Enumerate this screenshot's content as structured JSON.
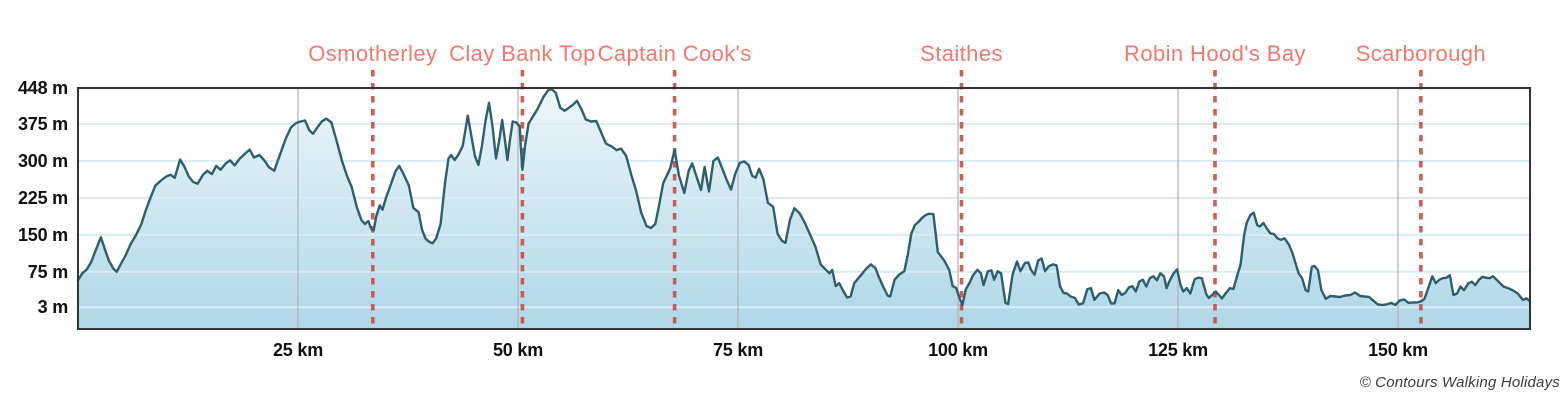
{
  "chart_data": {
    "type": "area",
    "title": "",
    "x_unit": "km",
    "y_unit": "m",
    "x_range": [
      0,
      165
    ],
    "y_axis_draw_range": [
      -41,
      448
    ],
    "grid": true,
    "y_ticks": [
      {
        "v": 448,
        "label": "448 m"
      },
      {
        "v": 375,
        "label": "375 m"
      },
      {
        "v": 300,
        "label": "300 m"
      },
      {
        "v": 225,
        "label": "225 m"
      },
      {
        "v": 150,
        "label": "150 m"
      },
      {
        "v": 75,
        "label": "75 m"
      },
      {
        "v": 3,
        "label": "3 m"
      }
    ],
    "x_ticks": [
      {
        "v": 25,
        "label": "25 km"
      },
      {
        "v": 50,
        "label": "50 km"
      },
      {
        "v": 75,
        "label": "75 km"
      },
      {
        "v": 100,
        "label": "100 km"
      },
      {
        "v": 125,
        "label": "125 km"
      },
      {
        "v": 150,
        "label": "150 km"
      }
    ],
    "markers": [
      {
        "label": "Osmotherley",
        "km": 33.5
      },
      {
        "label": "Clay Bank Top",
        "km": 50.5
      },
      {
        "label": "Captain Cook's",
        "km": 67.8
      },
      {
        "label": "Staithes",
        "km": 100.4
      },
      {
        "label": "Robin Hood's Bay",
        "km": 129.2
      },
      {
        "label": "Scarborough",
        "km": 152.6
      }
    ],
    "profile_km_m": [
      [
        0,
        58
      ],
      [
        0.5,
        72
      ],
      [
        1,
        80
      ],
      [
        1.5,
        95
      ],
      [
        2,
        118
      ],
      [
        2.6,
        145
      ],
      [
        3.1,
        118
      ],
      [
        3.5,
        98
      ],
      [
        4,
        82
      ],
      [
        4.4,
        75
      ],
      [
        4.9,
        92
      ],
      [
        5.4,
        108
      ],
      [
        6,
        132
      ],
      [
        6.6,
        150
      ],
      [
        7.2,
        172
      ],
      [
        7.7,
        200
      ],
      [
        8.3,
        228
      ],
      [
        8.8,
        250
      ],
      [
        9.4,
        260
      ],
      [
        10,
        268
      ],
      [
        10.5,
        272
      ],
      [
        11,
        266
      ],
      [
        11.6,
        303
      ],
      [
        12.1,
        288
      ],
      [
        12.6,
        268
      ],
      [
        13.1,
        257
      ],
      [
        13.6,
        254
      ],
      [
        14.2,
        272
      ],
      [
        14.7,
        280
      ],
      [
        15.2,
        273
      ],
      [
        15.7,
        290
      ],
      [
        16.2,
        282
      ],
      [
        16.8,
        295
      ],
      [
        17.3,
        301
      ],
      [
        17.8,
        291
      ],
      [
        18.4,
        305
      ],
      [
        19,
        315
      ],
      [
        19.5,
        323
      ],
      [
        20,
        307
      ],
      [
        20.6,
        312
      ],
      [
        21.1,
        303
      ],
      [
        21.7,
        287
      ],
      [
        22.3,
        280
      ],
      [
        23,
        315
      ],
      [
        23.6,
        345
      ],
      [
        24.2,
        368
      ],
      [
        24.8,
        377
      ],
      [
        25.3,
        380
      ],
      [
        25.8,
        382
      ],
      [
        26.3,
        362
      ],
      [
        26.7,
        355
      ],
      [
        27.2,
        368
      ],
      [
        27.7,
        380
      ],
      [
        28.2,
        386
      ],
      [
        28.8,
        378
      ],
      [
        29.4,
        340
      ],
      [
        30,
        300
      ],
      [
        30.6,
        268
      ],
      [
        31.1,
        247
      ],
      [
        31.7,
        205
      ],
      [
        32.2,
        180
      ],
      [
        32.6,
        172
      ],
      [
        33,
        178
      ],
      [
        33.3,
        163
      ],
      [
        33.6,
        160
      ],
      [
        33.9,
        188
      ],
      [
        34.3,
        210
      ],
      [
        34.6,
        201
      ],
      [
        35,
        225
      ],
      [
        35.6,
        255
      ],
      [
        36.1,
        280
      ],
      [
        36.5,
        290
      ],
      [
        37,
        273
      ],
      [
        37.6,
        250
      ],
      [
        38.1,
        205
      ],
      [
        38.7,
        196
      ],
      [
        39.1,
        160
      ],
      [
        39.5,
        142
      ],
      [
        40,
        135
      ],
      [
        40.3,
        133
      ],
      [
        40.7,
        143
      ],
      [
        41.2,
        172
      ],
      [
        41.7,
        255
      ],
      [
        42.1,
        305
      ],
      [
        42.4,
        312
      ],
      [
        42.8,
        302
      ],
      [
        43.2,
        312
      ],
      [
        43.7,
        330
      ],
      [
        44,
        360
      ],
      [
        44.3,
        392
      ],
      [
        44.7,
        350
      ],
      [
        45.1,
        310
      ],
      [
        45.5,
        292
      ],
      [
        45.9,
        330
      ],
      [
        46.3,
        380
      ],
      [
        46.7,
        418
      ],
      [
        47.1,
        370
      ],
      [
        47.5,
        305
      ],
      [
        47.9,
        345
      ],
      [
        48.2,
        383
      ],
      [
        48.6,
        330
      ],
      [
        48.8,
        302
      ],
      [
        49.1,
        345
      ],
      [
        49.4,
        380
      ],
      [
        49.8,
        378
      ],
      [
        50.2,
        370
      ],
      [
        50.3,
        335
      ],
      [
        50.5,
        282
      ],
      [
        50.8,
        330
      ],
      [
        51.2,
        376
      ],
      [
        51.8,
        393
      ],
      [
        52.3,
        408
      ],
      [
        52.9,
        430
      ],
      [
        53.4,
        443
      ],
      [
        53.8,
        446
      ],
      [
        54.3,
        438
      ],
      [
        54.8,
        408
      ],
      [
        55.3,
        402
      ],
      [
        55.8,
        408
      ],
      [
        56.3,
        415
      ],
      [
        56.7,
        422
      ],
      [
        57.2,
        405
      ],
      [
        57.7,
        384
      ],
      [
        58.3,
        380
      ],
      [
        58.9,
        381
      ],
      [
        59.4,
        360
      ],
      [
        60,
        335
      ],
      [
        60.6,
        330
      ],
      [
        61.2,
        322
      ],
      [
        61.7,
        325
      ],
      [
        62.3,
        310
      ],
      [
        62.9,
        270
      ],
      [
        63.4,
        241
      ],
      [
        64,
        195
      ],
      [
        64.6,
        168
      ],
      [
        65.1,
        164
      ],
      [
        65.6,
        172
      ],
      [
        66,
        207
      ],
      [
        66.5,
        255
      ],
      [
        66.9,
        270
      ],
      [
        67.3,
        285
      ],
      [
        67.8,
        322
      ],
      [
        68.3,
        270
      ],
      [
        68.9,
        235
      ],
      [
        69.4,
        280
      ],
      [
        69.8,
        295
      ],
      [
        70.3,
        268
      ],
      [
        70.8,
        241
      ],
      [
        71.2,
        288
      ],
      [
        71.7,
        238
      ],
      [
        72.2,
        300
      ],
      [
        72.7,
        307
      ],
      [
        73.2,
        285
      ],
      [
        73.7,
        262
      ],
      [
        74.2,
        242
      ],
      [
        74.7,
        275
      ],
      [
        75.2,
        296
      ],
      [
        75.7,
        299
      ],
      [
        76.2,
        292
      ],
      [
        76.6,
        270
      ],
      [
        77,
        266
      ],
      [
        77.4,
        284
      ],
      [
        77.9,
        262
      ],
      [
        78.4,
        215
      ],
      [
        79,
        207
      ],
      [
        79.5,
        152
      ],
      [
        80,
        138
      ],
      [
        80.4,
        134
      ],
      [
        80.9,
        180
      ],
      [
        81.4,
        204
      ],
      [
        82,
        194
      ],
      [
        82.6,
        174
      ],
      [
        83.2,
        150
      ],
      [
        83.8,
        126
      ],
      [
        84.4,
        90
      ],
      [
        85,
        79
      ],
      [
        85.4,
        72
      ],
      [
        85.7,
        79
      ],
      [
        86.1,
        46
      ],
      [
        86.5,
        52
      ],
      [
        87,
        35
      ],
      [
        87.4,
        23
      ],
      [
        87.8,
        25
      ],
      [
        88.2,
        52
      ],
      [
        89,
        69
      ],
      [
        89.6,
        82
      ],
      [
        90.1,
        90
      ],
      [
        90.6,
        83
      ],
      [
        91,
        65
      ],
      [
        91.5,
        45
      ],
      [
        92,
        27
      ],
      [
        92.3,
        25
      ],
      [
        92.8,
        59
      ],
      [
        93.3,
        69
      ],
      [
        93.9,
        76
      ],
      [
        94.3,
        110
      ],
      [
        94.7,
        153
      ],
      [
        95.1,
        170
      ],
      [
        95.5,
        176
      ],
      [
        95.9,
        184
      ],
      [
        96.3,
        190
      ],
      [
        96.7,
        193
      ],
      [
        97.2,
        192
      ],
      [
        97.7,
        115
      ],
      [
        98.1,
        106
      ],
      [
        98.5,
        96
      ],
      [
        99,
        79
      ],
      [
        99.4,
        46
      ],
      [
        99.8,
        42
      ],
      [
        100.2,
        20
      ],
      [
        100.5,
        8
      ],
      [
        100.9,
        40
      ],
      [
        101.3,
        52
      ],
      [
        101.7,
        68
      ],
      [
        102.2,
        79
      ],
      [
        102.6,
        72
      ],
      [
        102.9,
        48
      ],
      [
        103.4,
        76
      ],
      [
        103.8,
        78
      ],
      [
        104.1,
        59
      ],
      [
        104.5,
        76
      ],
      [
        104.9,
        72
      ],
      [
        105.4,
        12
      ],
      [
        105.7,
        10
      ],
      [
        106.2,
        70
      ],
      [
        106.7,
        96
      ],
      [
        107.1,
        76
      ],
      [
        107.6,
        93
      ],
      [
        108,
        94
      ],
      [
        108.3,
        79
      ],
      [
        108.7,
        69
      ],
      [
        109.1,
        98
      ],
      [
        109.5,
        102
      ],
      [
        109.9,
        76
      ],
      [
        110.3,
        86
      ],
      [
        110.8,
        90
      ],
      [
        111.2,
        88
      ],
      [
        111.6,
        45
      ],
      [
        112,
        32
      ],
      [
        112.4,
        31
      ],
      [
        112.8,
        25
      ],
      [
        113.3,
        22
      ],
      [
        113.7,
        9
      ],
      [
        114.2,
        11
      ],
      [
        114.7,
        40
      ],
      [
        115.1,
        42
      ],
      [
        115.5,
        18
      ],
      [
        116.1,
        31
      ],
      [
        116.6,
        33
      ],
      [
        117,
        28
      ],
      [
        117.4,
        11
      ],
      [
        117.8,
        11
      ],
      [
        118.2,
        38
      ],
      [
        118.6,
        28
      ],
      [
        119,
        32
      ],
      [
        119.4,
        43
      ],
      [
        119.8,
        46
      ],
      [
        120.2,
        35
      ],
      [
        120.6,
        55
      ],
      [
        121,
        59
      ],
      [
        121.4,
        45
      ],
      [
        121.8,
        62
      ],
      [
        122.2,
        66
      ],
      [
        122.6,
        58
      ],
      [
        123,
        72
      ],
      [
        123.4,
        66
      ],
      [
        123.7,
        42
      ],
      [
        124,
        55
      ],
      [
        124.5,
        72
      ],
      [
        124.9,
        80
      ],
      [
        125.3,
        48
      ],
      [
        125.6,
        35
      ],
      [
        126,
        42
      ],
      [
        126.4,
        31
      ],
      [
        126.9,
        60
      ],
      [
        127.3,
        63
      ],
      [
        127.7,
        62
      ],
      [
        128.2,
        30
      ],
      [
        128.5,
        22
      ],
      [
        129,
        30
      ],
      [
        129.3,
        35
      ],
      [
        129.7,
        27
      ],
      [
        130,
        21
      ],
      [
        130.4,
        31
      ],
      [
        130.9,
        42
      ],
      [
        131.3,
        40
      ],
      [
        131.7,
        66
      ],
      [
        132.1,
        89
      ],
      [
        132.5,
        147
      ],
      [
        132.8,
        174
      ],
      [
        133.2,
        190
      ],
      [
        133.6,
        195
      ],
      [
        134,
        170
      ],
      [
        134.3,
        167
      ],
      [
        134.7,
        174
      ],
      [
        135.1,
        163
      ],
      [
        135.5,
        153
      ],
      [
        135.9,
        152
      ],
      [
        136.3,
        143
      ],
      [
        136.7,
        140
      ],
      [
        137.1,
        143
      ],
      [
        137.6,
        130
      ],
      [
        138,
        113
      ],
      [
        138.3,
        96
      ],
      [
        138.7,
        72
      ],
      [
        139.1,
        62
      ],
      [
        139.5,
        38
      ],
      [
        139.8,
        35
      ],
      [
        140.2,
        85
      ],
      [
        140.5,
        87
      ],
      [
        140.9,
        79
      ],
      [
        141.3,
        38
      ],
      [
        141.8,
        20
      ],
      [
        142.3,
        26
      ],
      [
        142.9,
        25
      ],
      [
        143.4,
        24
      ],
      [
        144,
        27
      ],
      [
        144.6,
        28
      ],
      [
        145.1,
        33
      ],
      [
        145.7,
        26
      ],
      [
        146.2,
        25
      ],
      [
        146.7,
        24
      ],
      [
        147.1,
        18
      ],
      [
        147.7,
        9
      ],
      [
        148.2,
        8
      ],
      [
        148.7,
        9
      ],
      [
        149.2,
        12
      ],
      [
        149.7,
        8
      ],
      [
        150.2,
        17
      ],
      [
        150.7,
        19
      ],
      [
        151.2,
        12
      ],
      [
        151.7,
        13
      ],
      [
        152.2,
        13
      ],
      [
        152.6,
        15
      ],
      [
        153,
        20
      ],
      [
        153.5,
        45
      ],
      [
        153.9,
        66
      ],
      [
        154.3,
        52
      ],
      [
        154.7,
        59
      ],
      [
        155.1,
        62
      ],
      [
        155.5,
        63
      ],
      [
        155.9,
        68
      ],
      [
        156.3,
        28
      ],
      [
        156.7,
        31
      ],
      [
        157.1,
        45
      ],
      [
        157.5,
        38
      ],
      [
        158,
        52
      ],
      [
        158.4,
        55
      ],
      [
        158.8,
        48
      ],
      [
        159.2,
        59
      ],
      [
        159.6,
        65
      ],
      [
        160,
        63
      ],
      [
        160.4,
        62
      ],
      [
        160.8,
        66
      ],
      [
        161.2,
        59
      ],
      [
        161.6,
        52
      ],
      [
        162,
        45
      ],
      [
        162.5,
        42
      ],
      [
        163,
        38
      ],
      [
        163.6,
        31
      ],
      [
        164.2,
        18
      ],
      [
        164.6,
        21
      ],
      [
        165,
        15
      ]
    ],
    "legend": null
  },
  "colors": {
    "marker_label": "#f3796e",
    "marker_dash": "#c8524d",
    "profile_line": "#2d5f6e",
    "fill_top": "#edf6fa",
    "fill_bottom": "#afd7e7",
    "h_gridline": "#d8ecf5",
    "v_gridline": "#b6b6b6",
    "plot_border": "#333333",
    "tick_text": "#111111"
  },
  "watermark": {
    "text": "© Contours Walking Holidays"
  }
}
